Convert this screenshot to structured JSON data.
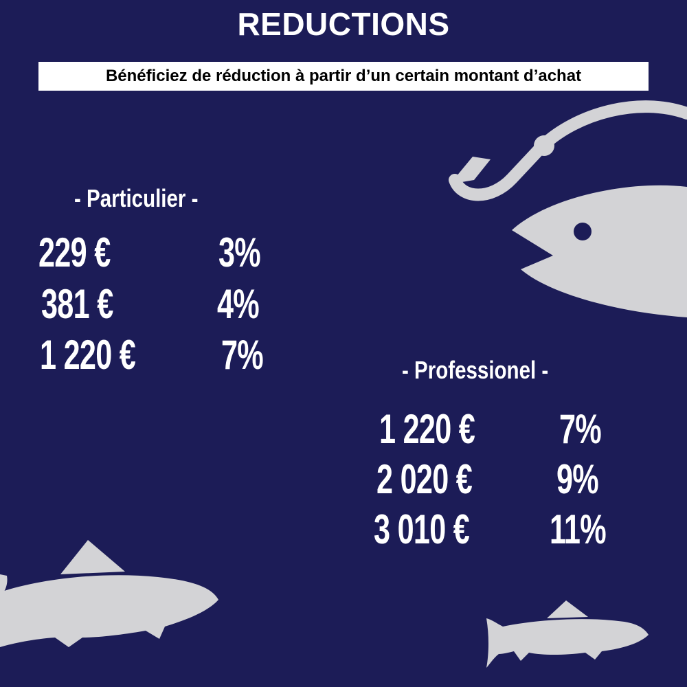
{
  "header": {
    "title": "REDUCTIONS",
    "subtitle": "Bénéficiez de réduction à partir d’un certain montant d’achat"
  },
  "particulier": {
    "title": "- Particulier -",
    "rows": [
      {
        "amount": "229 €",
        "discount": "3%"
      },
      {
        "amount": "381 €",
        "discount": "4%"
      },
      {
        "amount": "1 220 €",
        "discount": "7%"
      }
    ]
  },
  "professionel": {
    "title": "- Professionel -",
    "rows": [
      {
        "amount": "1 220 €",
        "discount": "7%"
      },
      {
        "amount": "2 020 €",
        "discount": "9%"
      },
      {
        "amount": "3 010 €",
        "discount": "11%"
      }
    ]
  },
  "colors": {
    "background": "#1c1c57",
    "text": "#ffffff",
    "illustration": "#d3d3d6"
  },
  "icons": [
    "fish-hook-icon",
    "fish-head-icon",
    "trout-icon",
    "small-trout-icon"
  ]
}
